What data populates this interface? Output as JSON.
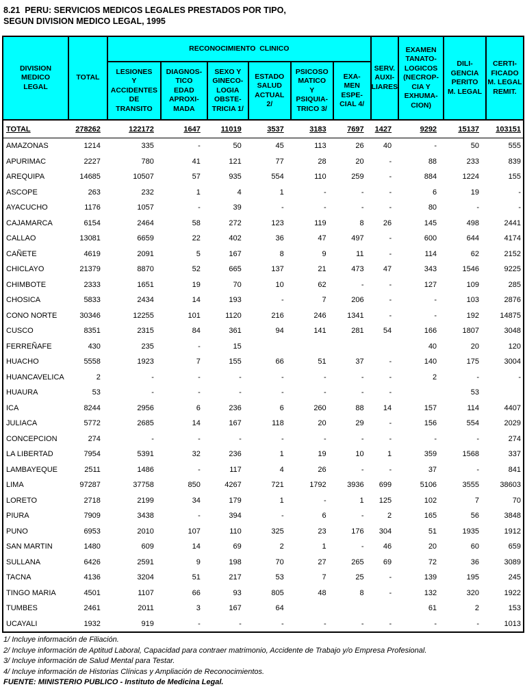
{
  "title": {
    "line1": "8.21  PERU: SERVICIOS MEDICOS LEGALES PRESTADOS POR TIPO,",
    "line2": "SEGUN DIVISION MEDICO LEGAL, 1995"
  },
  "table": {
    "header_bg_color": "#00ffff",
    "headers": {
      "division": "DIVISION\nMEDICO\nLEGAL",
      "total": "TOTAL",
      "reconocimiento_clinico": "RECONOCIMIENTO  CLINICO",
      "sub": [
        "LESIONES\nY\nACCIDENTES\nDE\nTRANSITO",
        "DIAGNOS-\nTICO\nEDAD\nAPROXI-\nMADA",
        "SEXO Y\nGINECO-\nLOGIA\nOBSTE-\nTRICIA 1/",
        "ESTADO\nSALUD\nACTUAL\n2/",
        "PSICOSO\nMATICO\nY\nPSIQUIA-\nTRICO 3/",
        "EXA-\nMEN\nESPE-\nCIAL 4/"
      ],
      "serv_auxiliares": "SERV.\nAUXI-\nLIARES",
      "examen_tanatologicos": "EXAMEN\nTANATO-\nLOGICOS\n(NECROP-\nCIA Y\nEXHUMA-\nCION)",
      "diligencia_perito": "DILI-\nGENCIA\nPERITO\nM. LEGAL",
      "certificado": "CERTI-\nFICADO\nM. LEGAL\nREMIT."
    },
    "total_row": {
      "name": "TOTAL",
      "values": [
        "278262",
        "122172",
        "1647",
        "11019",
        "3537",
        "3183",
        "7697",
        "1427",
        "9292",
        "15137",
        "103151"
      ]
    },
    "rows": [
      {
        "name": "AMAZONAS",
        "values": [
          "1214",
          "335",
          "-",
          "50",
          "45",
          "113",
          "26",
          "40",
          "-",
          "50",
          "555"
        ]
      },
      {
        "name": "APURIMAC",
        "values": [
          "2227",
          "780",
          "41",
          "121",
          "77",
          "28",
          "20",
          "-",
          "88",
          "233",
          "839"
        ]
      },
      {
        "name": "AREQUIPA",
        "values": [
          "14685",
          "10507",
          "57",
          "935",
          "554",
          "110",
          "259",
          "-",
          "884",
          "1224",
          "155"
        ]
      },
      {
        "name": "ASCOPE",
        "values": [
          "263",
          "232",
          "1",
          "4",
          "1",
          "-",
          "-",
          "-",
          "6",
          "19",
          "-"
        ]
      },
      {
        "name": "AYACUCHO",
        "values": [
          "1176",
          "1057",
          "-",
          "39",
          "-",
          "-",
          "-",
          "-",
          "80",
          "-",
          "-"
        ]
      },
      {
        "name": "CAJAMARCA",
        "values": [
          "6154",
          "2464",
          "58",
          "272",
          "123",
          "119",
          "8",
          "26",
          "145",
          "498",
          "2441"
        ]
      },
      {
        "name": "CALLAO",
        "values": [
          "13081",
          "6659",
          "22",
          "402",
          "36",
          "47",
          "497",
          "-",
          "600",
          "644",
          "4174"
        ]
      },
      {
        "name": "CAÑETE",
        "values": [
          "4619",
          "2091",
          "5",
          "167",
          "8",
          "9",
          "11",
          "-",
          "114",
          "62",
          "2152"
        ]
      },
      {
        "name": "CHICLAYO",
        "values": [
          "21379",
          "8870",
          "52",
          "665",
          "137",
          "21",
          "473",
          "47",
          "343",
          "1546",
          "9225"
        ]
      },
      {
        "name": "CHIMBOTE",
        "values": [
          "2333",
          "1651",
          "19",
          "70",
          "10",
          "62",
          "-",
          "-",
          "127",
          "109",
          "285"
        ]
      },
      {
        "name": "CHOSICA",
        "values": [
          "5833",
          "2434",
          "14",
          "193",
          "-",
          "7",
          "206",
          "-",
          "-",
          "103",
          "2876"
        ]
      },
      {
        "name": "CONO NORTE",
        "values": [
          "30346",
          "12255",
          "101",
          "1120",
          "216",
          "246",
          "1341",
          "-",
          "-",
          "192",
          "14875"
        ]
      },
      {
        "name": "CUSCO",
        "values": [
          "8351",
          "2315",
          "84",
          "361",
          "94",
          "141",
          "281",
          "54",
          "166",
          "1807",
          "3048"
        ]
      },
      {
        "name": "FERREÑAFE",
        "values": [
          "430",
          "235",
          "-",
          "15",
          "",
          "",
          "",
          "",
          "40",
          "20",
          "120"
        ]
      },
      {
        "name": "HUACHO",
        "values": [
          "5558",
          "1923",
          "7",
          "155",
          "66",
          "51",
          "37",
          "-",
          "140",
          "175",
          "3004"
        ]
      },
      {
        "name": "HUANCAVELICA",
        "values": [
          "2",
          "-",
          "-",
          "-",
          "-",
          "-",
          "-",
          "-",
          "2",
          "-",
          "-"
        ]
      },
      {
        "name": "HUAURA",
        "values": [
          "53",
          "-",
          "-",
          "-",
          "-",
          "-",
          "-",
          "-",
          "",
          "53",
          ""
        ]
      },
      {
        "name": "ICA",
        "values": [
          "8244",
          "2956",
          "6",
          "236",
          "6",
          "260",
          "88",
          "14",
          "157",
          "114",
          "4407"
        ]
      },
      {
        "name": "JULIACA",
        "values": [
          "5772",
          "2685",
          "14",
          "167",
          "118",
          "20",
          "29",
          "-",
          "156",
          "554",
          "2029"
        ]
      },
      {
        "name": "CONCEPCION",
        "values": [
          "274",
          "-",
          "-",
          "-",
          "-",
          "-",
          "-",
          "-",
          "-",
          "-",
          "274"
        ]
      },
      {
        "name": "LA LIBERTAD",
        "values": [
          "7954",
          "5391",
          "32",
          "236",
          "1",
          "19",
          "10",
          "1",
          "359",
          "1568",
          "337"
        ]
      },
      {
        "name": "LAMBAYEQUE",
        "values": [
          "2511",
          "1486",
          "-",
          "117",
          "4",
          "26",
          "-",
          "-",
          "37",
          "-",
          "841"
        ]
      },
      {
        "name": "LIMA",
        "values": [
          "97287",
          "37758",
          "850",
          "4267",
          "721",
          "1792",
          "3936",
          "699",
          "5106",
          "3555",
          "38603"
        ]
      },
      {
        "name": "LORETO",
        "values": [
          "2718",
          "2199",
          "34",
          "179",
          "1",
          "-",
          "1",
          "125",
          "102",
          "7",
          "70"
        ]
      },
      {
        "name": "PIURA",
        "values": [
          "7909",
          "3438",
          "-",
          "394",
          "-",
          "6",
          "-",
          "2",
          "165",
          "56",
          "3848"
        ]
      },
      {
        "name": "PUNO",
        "values": [
          "6953",
          "2010",
          "107",
          "110",
          "325",
          "23",
          "176",
          "304",
          "51",
          "1935",
          "1912"
        ]
      },
      {
        "name": "SAN MARTIN",
        "values": [
          "1480",
          "609",
          "14",
          "69",
          "2",
          "1",
          "-",
          "46",
          "20",
          "60",
          "659"
        ]
      },
      {
        "name": "SULLANA",
        "values": [
          "6426",
          "2591",
          "9",
          "198",
          "70",
          "27",
          "265",
          "69",
          "72",
          "36",
          "3089"
        ]
      },
      {
        "name": "TACNA",
        "values": [
          "4136",
          "3204",
          "51",
          "217",
          "53",
          "7",
          "25",
          "-",
          "139",
          "195",
          "245"
        ]
      },
      {
        "name": "TINGO MARIA",
        "values": [
          "4501",
          "1107",
          "66",
          "93",
          "805",
          "48",
          "8",
          "-",
          "132",
          "320",
          "1922"
        ]
      },
      {
        "name": "TUMBES",
        "values": [
          "2461",
          "2011",
          "3",
          "167",
          "64",
          "",
          "",
          "",
          "61",
          "2",
          "153"
        ]
      },
      {
        "name": "UCAYALI",
        "values": [
          "1932",
          "919",
          "-",
          "-",
          "-",
          "-",
          "-",
          "-",
          "-",
          "-",
          "1013"
        ]
      }
    ]
  },
  "footnotes": [
    "1/ Incluye información de Filiación.",
    "2/ Incluye información de Aptitud Laboral, Capacidad para contraer matrimonio, Accidente de Trabajo y/o Empresa Profesional.",
    "3/ Incluye información de Salud Mental para Testar.",
    "4/ Incluye información de Historias Clínicas y Ampliación de Reconocimientos."
  ],
  "source": "FUENTE: MINISTERIO PUBLICO - Instituto de Medicina Legal."
}
